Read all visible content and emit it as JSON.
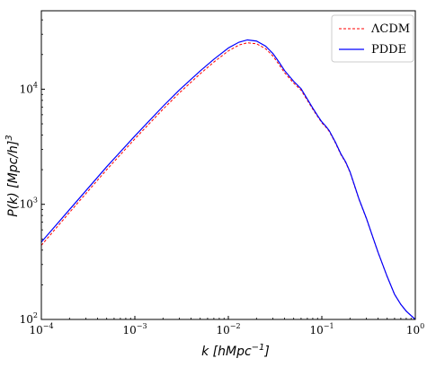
{
  "chart_data": {
    "type": "line",
    "title": "",
    "xlabel": {
      "italic": "k",
      "rest": " [hMpc",
      "sup": "−1",
      "close": "]"
    },
    "ylabel": {
      "italic": "P(k)",
      "rest": " [Mpc/h]",
      "sup": "3"
    },
    "x_scale": "log",
    "y_scale": "log",
    "xlim": [
      0.0001,
      1
    ],
    "ylim": [
      100,
      48000
    ],
    "x_ticks": [
      {
        "value": 0.0001,
        "base": "10",
        "exp": "−4"
      },
      {
        "value": 0.001,
        "base": "10",
        "exp": "−3"
      },
      {
        "value": 0.01,
        "base": "10",
        "exp": "−2"
      },
      {
        "value": 0.1,
        "base": "10",
        "exp": "−1"
      },
      {
        "value": 1,
        "base": "10",
        "exp": "0"
      }
    ],
    "y_ticks": [
      {
        "value": 100,
        "base": "10",
        "exp": "2"
      },
      {
        "value": 1000,
        "base": "10",
        "exp": "3"
      },
      {
        "value": 10000,
        "base": "10",
        "exp": "4"
      }
    ],
    "grid": false,
    "legend_position": "top-right",
    "series": [
      {
        "name": "ΛCDM",
        "color": "#ff0000",
        "dash": "dashed",
        "x": [
          0.0001,
          0.0002,
          0.0005,
          0.001,
          0.002,
          0.003,
          0.005,
          0.007,
          0.01,
          0.013,
          0.016,
          0.02,
          0.025,
          0.03,
          0.035,
          0.04,
          0.05,
          0.06,
          0.07,
          0.08,
          0.09,
          0.1,
          0.11,
          0.12,
          0.14,
          0.16,
          0.18,
          0.2,
          0.22,
          0.25,
          0.3,
          0.35,
          0.4,
          0.5,
          0.6,
          0.7,
          0.8,
          1.0
        ],
        "y": [
          440,
          850,
          2000,
          3700,
          6700,
          9300,
          13600,
          17200,
          21500,
          24200,
          25300,
          24800,
          22500,
          19400,
          16300,
          13900,
          11300,
          9800,
          8000,
          6700,
          5800,
          5100,
          4700,
          4300,
          3400,
          2700,
          2300,
          1900,
          1500,
          1100,
          750,
          520,
          380,
          235,
          165,
          135,
          118,
          100
        ]
      },
      {
        "name": "PDDE",
        "color": "#0000ff",
        "dash": "solid",
        "x": [
          0.0001,
          0.0002,
          0.0005,
          0.001,
          0.002,
          0.003,
          0.005,
          0.007,
          0.01,
          0.013,
          0.016,
          0.02,
          0.025,
          0.03,
          0.035,
          0.04,
          0.05,
          0.06,
          0.07,
          0.08,
          0.09,
          0.1,
          0.11,
          0.12,
          0.14,
          0.16,
          0.18,
          0.2,
          0.22,
          0.25,
          0.3,
          0.35,
          0.4,
          0.5,
          0.6,
          0.7,
          0.8,
          1.0
        ],
        "y": [
          470,
          900,
          2120,
          3920,
          7100,
          9850,
          14400,
          18200,
          22800,
          25600,
          26800,
          26200,
          23700,
          20400,
          17100,
          14500,
          11700,
          10100,
          8200,
          6850,
          5900,
          5200,
          4780,
          4370,
          3450,
          2740,
          2330,
          1920,
          1520,
          1110,
          755,
          523,
          382,
          236,
          165,
          135,
          118,
          100
        ]
      }
    ]
  }
}
